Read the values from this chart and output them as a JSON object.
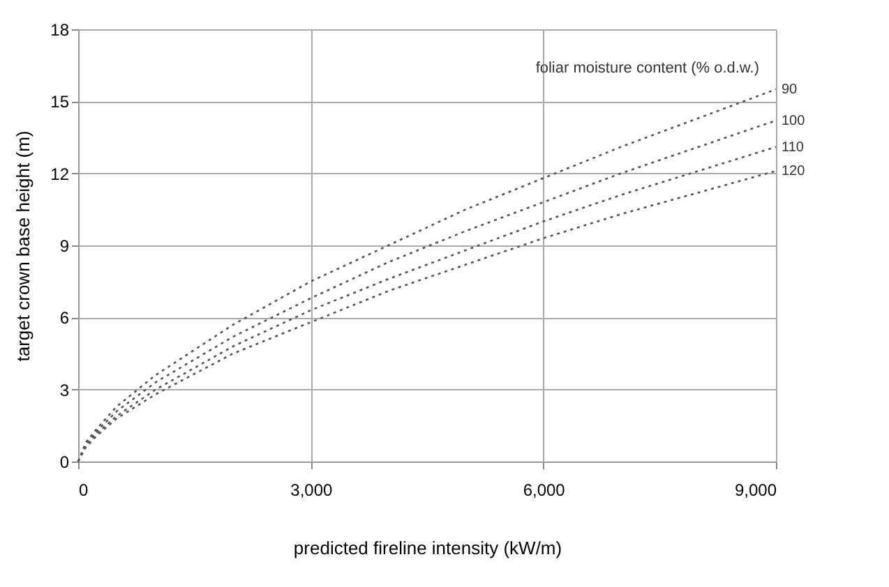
{
  "chart_data": {
    "type": "line",
    "xlabel": "predicted fireline intensity (kW/m)",
    "ylabel": "target crown base height (m)",
    "legend_title": "foliar moisture content (% o.d.w.)",
    "x": [
      0,
      100,
      250,
      500,
      1000,
      2000,
      3000,
      4000,
      5000,
      6000,
      7000,
      8000,
      9000
    ],
    "series": [
      {
        "name": "90",
        "color": "#555555",
        "values": [
          0,
          0.8,
          1.4,
          2.3,
          3.6,
          5.7,
          7.5,
          9.0,
          10.5,
          11.8,
          13.1,
          14.3,
          15.5
        ]
      },
      {
        "name": "100",
        "color": "#555555",
        "values": [
          0,
          0.7,
          1.3,
          2.1,
          3.3,
          5.2,
          6.8,
          8.3,
          9.6,
          10.8,
          12.0,
          13.1,
          14.2
        ]
      },
      {
        "name": "110",
        "color": "#555555",
        "values": [
          0,
          0.7,
          1.2,
          1.9,
          3.0,
          4.8,
          6.3,
          7.6,
          8.8,
          10.0,
          11.1,
          12.1,
          13.1
        ]
      },
      {
        "name": "120",
        "color": "#555555",
        "values": [
          0,
          0.6,
          1.1,
          1.8,
          2.8,
          4.5,
          5.8,
          7.1,
          8.2,
          9.3,
          10.3,
          11.2,
          12.1
        ]
      }
    ],
    "xlim": [
      0,
      9000
    ],
    "xticks": [
      {
        "value": 0,
        "label": "0"
      },
      {
        "value": 3000,
        "label": "3,000"
      },
      {
        "value": 6000,
        "label": "6,000"
      },
      {
        "value": 9000,
        "label": "9,000"
      }
    ],
    "ylim": [
      0,
      18
    ],
    "yticks": [
      0,
      3,
      6,
      9,
      12,
      15,
      18
    ],
    "grid": true,
    "legend": false,
    "line_style": "dotted",
    "marker": "none"
  }
}
